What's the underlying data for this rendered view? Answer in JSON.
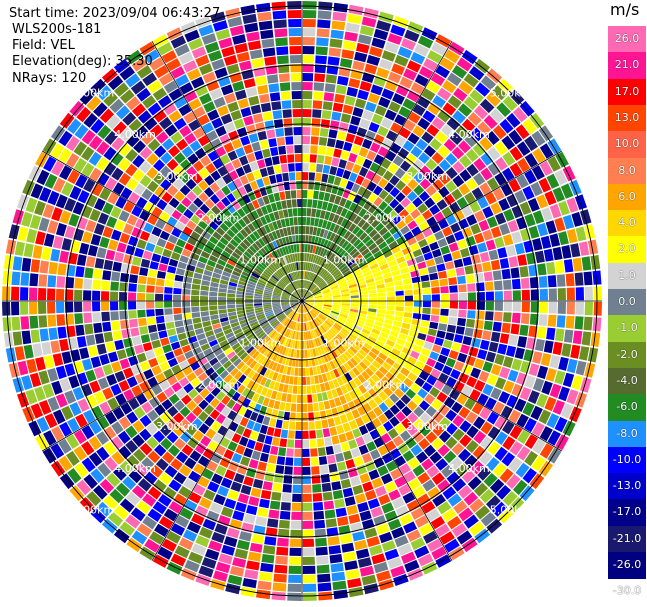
{
  "info": {
    "start_time": "Start time: 2023/09/04 06:43:27",
    "instrument": "WLS200s-181",
    "field": "Field: VEL",
    "elevation": "Elevation(deg): 35.30",
    "nrays": "NRays: 120"
  },
  "chart_data": {
    "type": "heatmap",
    "projection": "polar (PPI)",
    "field": "VEL",
    "nrays": 120,
    "range_rings": [
      {
        "label": "1.00km",
        "km": 1.0
      },
      {
        "label": "2.00km",
        "km": 2.0
      },
      {
        "label": "3.00km",
        "km": 3.0
      },
      {
        "label": "4.00km",
        "km": 4.0
      },
      {
        "label": "5.00km",
        "km": 5.0
      }
    ],
    "colorbar": {
      "unit": "m/s",
      "ticks": [
        "26.0",
        "21.0",
        "17.0",
        "13.0",
        "10.0",
        "8.0",
        "6.0",
        "4.0",
        "2.0",
        "1.0",
        "0.0",
        "-1.0",
        "-2.0",
        "-4.0",
        "-6.0",
        "-8.0",
        "-10.0",
        "-13.0",
        "-17.0",
        "-21.0",
        "-26.0",
        "-30.0"
      ],
      "colors": [
        "#ff69b4",
        "#ff1493",
        "#ff0000",
        "#ff4500",
        "#ff6347",
        "#ff7f50",
        "#ffa500",
        "#ffd700",
        "#ffff00",
        "#d3d3d3",
        "#708090",
        "#9acd32",
        "#6b8e23",
        "#556b2f",
        "#228b22",
        "#1e90ff",
        "#0000ff",
        "#0000cd",
        "#00008b",
        "#191970",
        "#000080"
      ]
    }
  }
}
